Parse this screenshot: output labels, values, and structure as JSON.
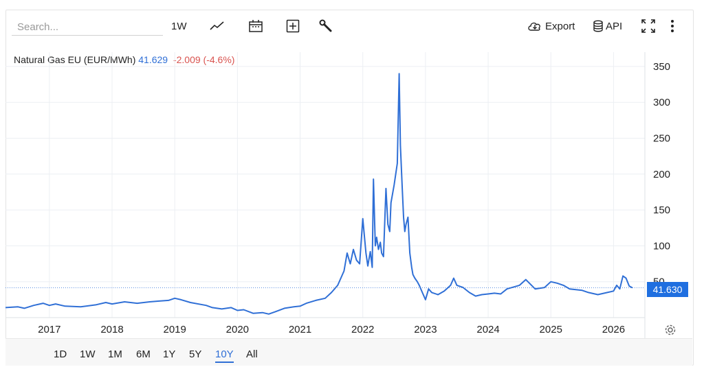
{
  "toolbar": {
    "search_placeholder": "Search...",
    "interval_label": "1W",
    "export_label": "Export",
    "api_label": "API",
    "icons": [
      "line-chart-icon",
      "calendar-icon",
      "plus-box-icon",
      "wrench-icon",
      "cloud-download-icon",
      "database-icon",
      "fullscreen-icon",
      "more-vertical-icon"
    ]
  },
  "legend": {
    "name": "Natural Gas EU (EUR/MWh)",
    "value": "41.629",
    "change": "-2.009 (-4.6%)"
  },
  "last_value_label": "41.630",
  "ranges": [
    "1D",
    "1W",
    "1M",
    "6M",
    "1Y",
    "5Y",
    "10Y",
    "All"
  ],
  "active_range": "10Y",
  "colors": {
    "line": "#2f6fd6",
    "badge": "#1f6fe0",
    "negative": "#d9534f"
  },
  "chart_data": {
    "type": "line",
    "title": "",
    "xlabel": "",
    "ylabel": "",
    "x_ticks": [
      "2017",
      "2018",
      "2019",
      "2020",
      "2021",
      "2022",
      "2023",
      "2024",
      "2025",
      "2026"
    ],
    "y_ticks": [
      50,
      100,
      150,
      200,
      250,
      300,
      350
    ],
    "xlim": [
      2016.3,
      2026.5
    ],
    "ylim": [
      0,
      370
    ],
    "grid": true,
    "last_value": 41.63,
    "series": [
      {
        "x": [
          2016.3,
          2016.5,
          2016.6,
          2016.75,
          2016.9,
          2017.0,
          2017.1,
          2017.25,
          2017.5,
          2017.75,
          2017.9,
          2018.0,
          2018.2,
          2018.4,
          2018.6,
          2018.75,
          2018.9,
          2019.0,
          2019.1,
          2019.25,
          2019.5,
          2019.6,
          2019.75,
          2019.9,
          2020.0,
          2020.1,
          2020.25,
          2020.4,
          2020.5,
          2020.6,
          2020.75,
          2020.9,
          2021.0,
          2021.1,
          2021.25,
          2021.4,
          2021.5,
          2021.6,
          2021.7,
          2021.75,
          2021.8,
          2021.85,
          2021.9,
          2021.95,
          2022.0,
          2022.05,
          2022.08,
          2022.12,
          2022.15,
          2022.17,
          2022.2,
          2022.22,
          2022.25,
          2022.28,
          2022.3,
          2022.33,
          2022.37,
          2022.4,
          2022.43,
          2022.45,
          2022.5,
          2022.55,
          2022.58,
          2022.6,
          2022.63,
          2022.65,
          2022.67,
          2022.69,
          2022.72,
          2022.75,
          2022.78,
          2022.8,
          2022.83,
          2022.87,
          2022.9,
          2022.95,
          2023.0,
          2023.05,
          2023.1,
          2023.2,
          2023.3,
          2023.4,
          2023.45,
          2023.5,
          2023.6,
          2023.7,
          2023.8,
          2023.9,
          2024.0,
          2024.1,
          2024.2,
          2024.3,
          2024.5,
          2024.6,
          2024.75,
          2024.9,
          2025.0,
          2025.1,
          2025.2,
          2025.3,
          2025.5,
          2025.6,
          2025.75,
          2025.9,
          2026.0,
          2026.05,
          2026.1,
          2026.15,
          2026.2,
          2026.25,
          2026.3
        ],
        "values": [
          14,
          15,
          13,
          17,
          20,
          17,
          19,
          16,
          15,
          18,
          21,
          19,
          22,
          20,
          22,
          23,
          24,
          27,
          25,
          21,
          17,
          14,
          12,
          14,
          10,
          11,
          6,
          7,
          5,
          8,
          13,
          15,
          16,
          20,
          24,
          27,
          35,
          45,
          65,
          90,
          75,
          95,
          80,
          75,
          138,
          90,
          72,
          92,
          70,
          193,
          100,
          112,
          95,
          105,
          90,
          85,
          180,
          130,
          120,
          160,
          185,
          215,
          340,
          240,
          180,
          140,
          120,
          130,
          140,
          90,
          70,
          60,
          55,
          50,
          45,
          35,
          25,
          40,
          35,
          32,
          37,
          45,
          55,
          45,
          42,
          35,
          30,
          32,
          33,
          34,
          33,
          40,
          45,
          53,
          40,
          42,
          50,
          48,
          45,
          40,
          38,
          35,
          32,
          35,
          37,
          45,
          40,
          58,
          55,
          44,
          41.63
        ]
      }
    ]
  }
}
